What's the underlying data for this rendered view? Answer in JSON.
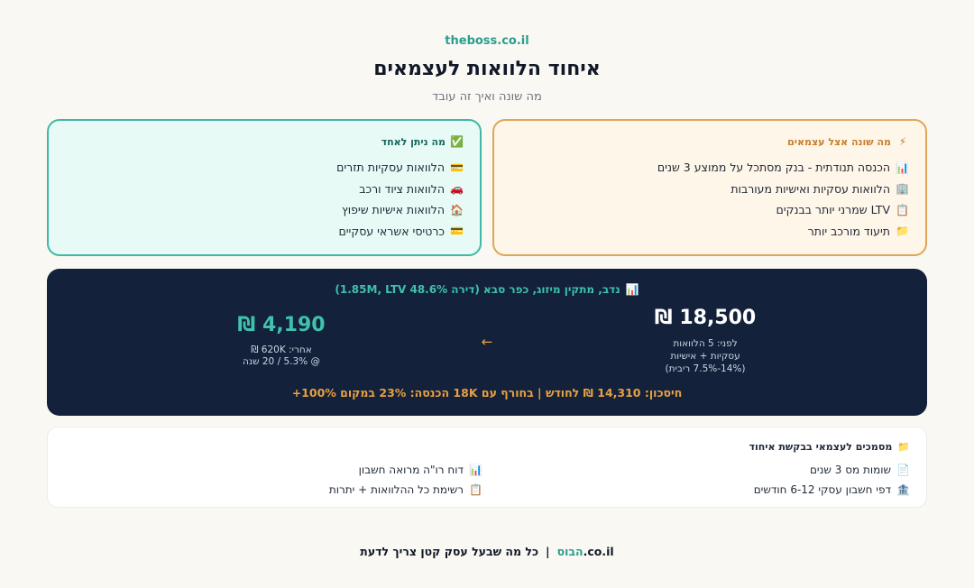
{
  "header": {
    "site": "theboss.co.il",
    "title": "איחוד הלוואות לעצמאים",
    "subtitle": "מה שונה ואיך זה עובד"
  },
  "what_differs": {
    "icon": "lightning-icon",
    "title": "מה שונה אצל עצמאים",
    "items": [
      {
        "icon": "chart-icon",
        "text": "הכנסה תנודתית - בנק מסתכל על ממוצע 3 שנים"
      },
      {
        "icon": "building-icon",
        "text": "הלוואות עסקיות ואישיות מעורבות"
      },
      {
        "icon": "clipboard-icon",
        "text": "LTV שמרני יותר בבנקים"
      },
      {
        "icon": "folder-icon",
        "text": "תיעוד מורכב יותר"
      }
    ]
  },
  "what_can_merge": {
    "icon": "check-icon",
    "title": "מה ניתן לאחד",
    "items": [
      {
        "icon": "card-icon",
        "text": "הלוואות עסקיות תזרים"
      },
      {
        "icon": "car-icon",
        "text": "הלוואות ציוד ורכב"
      },
      {
        "icon": "house-icon",
        "text": "הלוואות אישיות שיפוץ"
      },
      {
        "icon": "card-icon",
        "text": "כרטיסי אשראי עסקיים"
      }
    ]
  },
  "example": {
    "title": "נדב, מתקין מיזוג, כפר סבא (דירה 1.85M, LTV 48.6%)",
    "before_amount": "18,500 ₪",
    "before_lines": [
      "לפני: 5 הלוואות",
      "עסקיות + אישיות",
      "(14%-7.5% ריבית)"
    ],
    "after_amount": "4,190 ₪",
    "after_lines": [
      "אחרי: 620K ₪",
      "@ 5.3% / 20 שנה"
    ],
    "arrow": "←",
    "savings": "חיסכון: 14,310 ₪ לחודש | בחורף עם 18K הכנסה: 23% במקום 100%+"
  },
  "documents": {
    "icon": "folder-icon",
    "title": "מסמכים לעצמאי בבקשת איחוד",
    "items": [
      {
        "icon": "document-icon",
        "text": "שומות מס 3 שנים"
      },
      {
        "icon": "chart-icon",
        "text": "דוח רו\"ה מרואה חשבון"
      },
      {
        "icon": "bank-icon",
        "text": "דפי חשבון עסקי 6-12 חודשים"
      },
      {
        "icon": "clipboard-icon",
        "text": "רשימת כל ההלוואות + יתרות"
      }
    ]
  },
  "footer": {
    "brand_prefix": "הבוס",
    "brand_suffix": ".co.il",
    "separator": "|",
    "tagline": "כל מה שבעל עסק קטן צריך לדעת"
  },
  "colors": {
    "teal": "#3fc1ac",
    "orange": "#e8a040",
    "navy": "#13213a",
    "background": "#faf8f3"
  }
}
